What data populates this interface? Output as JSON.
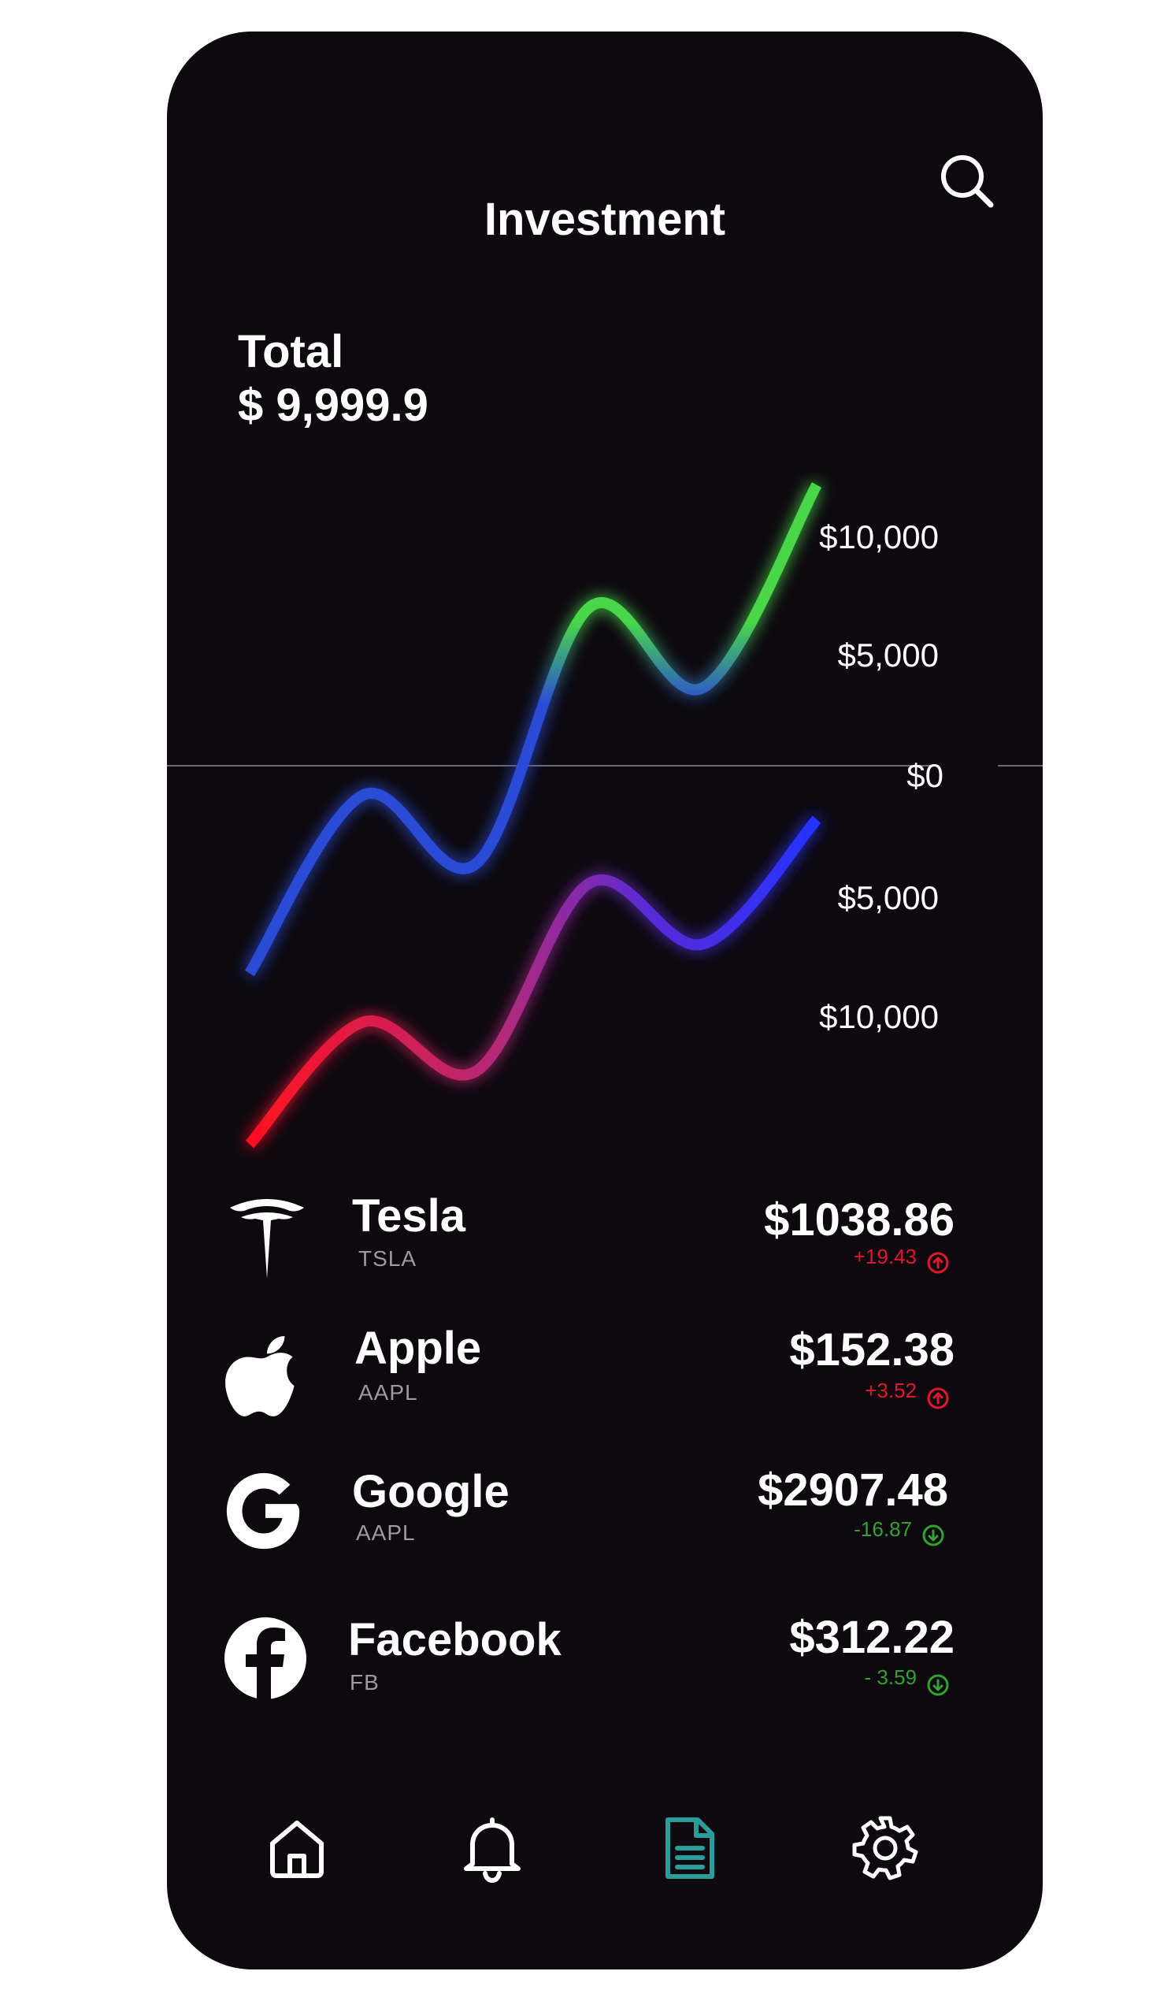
{
  "header": {
    "title": "Investment",
    "search_icon": "search-icon"
  },
  "total": {
    "label": "Total",
    "value": "$ 9,999.9"
  },
  "chart_data": {
    "type": "line",
    "axis_labels": [
      "$10,000",
      "$5,000",
      "$0",
      "$5,000",
      "$10,000"
    ],
    "y_values": [
      10000,
      5000,
      0,
      -5000,
      -10000
    ],
    "grid": false,
    "series": [
      {
        "gradient": [
          "#2a4bd6",
          "#48d64a"
        ],
        "x": [
          0,
          1,
          2,
          3,
          4,
          5
        ],
        "y": [
          -8500,
          -1200,
          -4000,
          6500,
          3200,
          11500
        ]
      },
      {
        "gradient": [
          "#ff1020",
          "#2433ff"
        ],
        "x": [
          0,
          1,
          2,
          3,
          4,
          5
        ],
        "y": [
          -15500,
          -10500,
          -12500,
          -4800,
          -7300,
          -2200
        ]
      }
    ]
  },
  "stocks": [
    {
      "name": "Tesla",
      "ticker": "TSLA",
      "price": "$1038.86",
      "change": "+19.43",
      "direction": "up",
      "logo": "tesla-logo-icon"
    },
    {
      "name": "Apple",
      "ticker": "AAPL",
      "price": "$152.38",
      "change": "+3.52",
      "direction": "up",
      "logo": "apple-logo-icon"
    },
    {
      "name": "Google",
      "ticker": "AAPL",
      "price": "$2907.48",
      "change": "-16.87",
      "direction": "down",
      "logo": "google-logo-icon"
    },
    {
      "name": "Facebook",
      "ticker": "FB",
      "price": "$312.22",
      "change": "- 3.59",
      "direction": "down",
      "logo": "facebook-logo-icon"
    }
  ],
  "colors": {
    "background": "#0d090f",
    "up": "#e4152b",
    "down": "#2fa32f",
    "active_nav": "#2a9d9a"
  },
  "nav": [
    {
      "icon": "home-icon",
      "active": false
    },
    {
      "icon": "bell-icon",
      "active": false
    },
    {
      "icon": "document-icon",
      "active": true
    },
    {
      "icon": "gear-icon",
      "active": false
    }
  ]
}
